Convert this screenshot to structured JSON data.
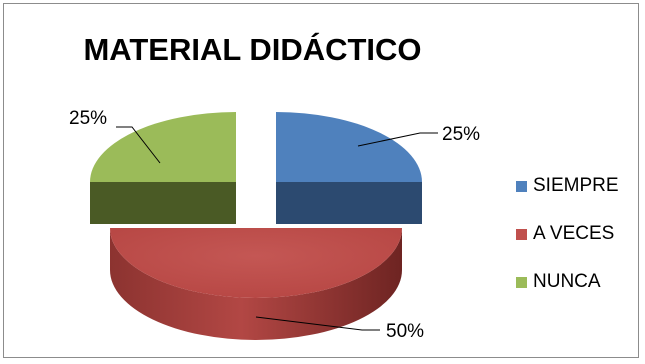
{
  "chart_data": {
    "type": "pie",
    "title": "MATERIAL DIDÁCTICO",
    "categories": [
      "SIEMPRE",
      "A VECES",
      "NUNCA"
    ],
    "values": [
      25,
      50,
      25
    ],
    "data_labels": [
      "25%",
      "50%",
      "25%"
    ],
    "colors": [
      "#4f81bd",
      "#c0504d",
      "#9bbb59"
    ],
    "legend_position": "right",
    "style": "3d-exploded"
  }
}
